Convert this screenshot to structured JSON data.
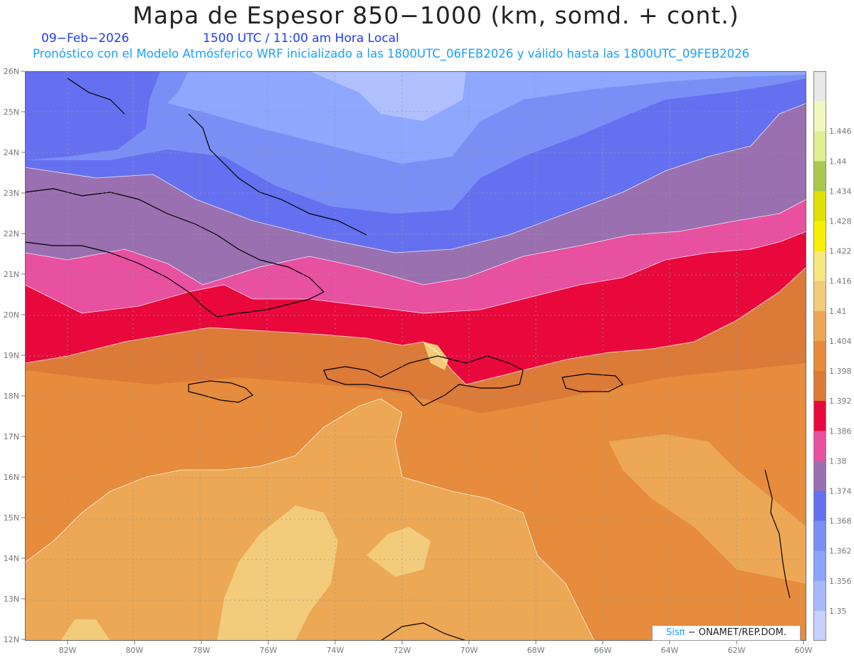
{
  "header": {
    "title": "Mapa de Espesor 850−1000 (km, somd. + cont.)",
    "date": "09−Feb−2026",
    "time": "1500 UTC / 11:00 am Hora Local",
    "model_line": "Pronóstico con el Modelo Atmósferico WRF inicializado a las 1800UTC_06FEB2026 y válido hasta las  1800UTC_09FEB2026"
  },
  "map": {
    "lat_labels": [
      "26N",
      "25N",
      "24N",
      "23N",
      "22N",
      "21N",
      "20N",
      "19N",
      "18N",
      "17N",
      "16N",
      "15N",
      "14N",
      "13N",
      "12N"
    ],
    "lon_labels": [
      "82W",
      "80W",
      "78W",
      "76W",
      "74W",
      "72W",
      "70W",
      "68W",
      "66W",
      "64W",
      "62W",
      "60W"
    ],
    "lat_range": [
      12,
      26
    ],
    "lon_range": [
      -83.2,
      -60
    ]
  },
  "colorbar": {
    "levels": [
      "1.35",
      "1.356",
      "1.362",
      "1.368",
      "1.374",
      "1.38",
      "1.386",
      "1.392",
      "1.398",
      "1.404",
      "1.41",
      "1.416",
      "1.422",
      "1.428",
      "1.434",
      "1.44",
      "1.446"
    ],
    "colors": [
      "#c8d0ff",
      "#a8b8ff",
      "#8aa4ff",
      "#7a8ff5",
      "#6470f0",
      "#9a70b0",
      "#e850a0",
      "#e8083c",
      "#dc7a38",
      "#e68c3c",
      "#eca855",
      "#f2cc7a",
      "#f8e680",
      "#f8f000",
      "#e0e000",
      "#a8c850",
      "#e0f090",
      "#f0f8c0",
      "#e8e8e8"
    ]
  },
  "credit": {
    "brand": "Sisπ",
    "org": "− ONAMET/REP.DOM."
  }
}
